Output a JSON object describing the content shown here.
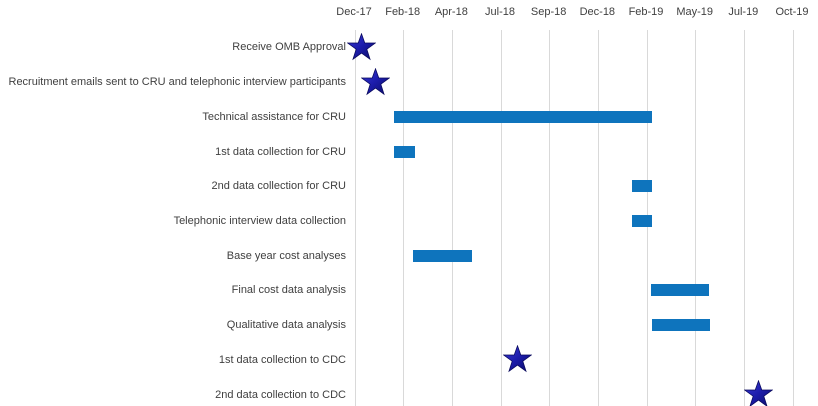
{
  "chart_data": {
    "type": "gantt",
    "title": "",
    "x_axis": {
      "tick_labels": [
        "Dec-17",
        "Feb-18",
        "Apr-18",
        "Jul-18",
        "Sep-18",
        "Dec-18",
        "Feb-19",
        "May-19",
        "Jul-19",
        "Oct-19"
      ],
      "origin_date": "2017-12-01",
      "tick_interval_days": 73,
      "grid": true,
      "labels_position": "top"
    },
    "tasks": [
      {
        "label": "Receive OMB Approval",
        "type": "milestone",
        "date": "2017-12-11"
      },
      {
        "label": "Recruitment emails sent to CRU and telephonic interview participants",
        "type": "milestone",
        "date": "2017-12-31"
      },
      {
        "label": "Technical assistance for CRU",
        "type": "bar",
        "start": "2018-01-29",
        "end": "2019-02-19"
      },
      {
        "label": "1st data collection for CRU",
        "type": "bar",
        "start": "2018-01-29",
        "end": "2018-03-01"
      },
      {
        "label": "2nd data collection for CRU",
        "type": "bar",
        "start": "2019-01-20",
        "end": "2019-02-19"
      },
      {
        "label": "Telephonic interview data collection",
        "type": "bar",
        "start": "2019-01-20",
        "end": "2019-02-19"
      },
      {
        "label": "Base year cost analyses",
        "type": "bar",
        "start": "2018-02-26",
        "end": "2018-05-25"
      },
      {
        "label": "Final cost data analysis",
        "type": "bar",
        "start": "2019-02-18",
        "end": "2019-05-16"
      },
      {
        "label": "Qualitative data analysis",
        "type": "bar",
        "start": "2019-02-19",
        "end": "2019-05-17"
      },
      {
        "label": "1st data collection to CDC",
        "type": "milestone",
        "date": "2018-08-02"
      },
      {
        "label": "2nd data collection to CDC",
        "type": "milestone",
        "date": "2019-07-29"
      }
    ],
    "colors": {
      "bar": "#0e74bd",
      "milestone_light": "#3a3ad6",
      "milestone_mid": "#1c1caa",
      "milestone_dark": "#0b0b66",
      "gridline": "#d9d9d9",
      "text": "#404040"
    }
  }
}
